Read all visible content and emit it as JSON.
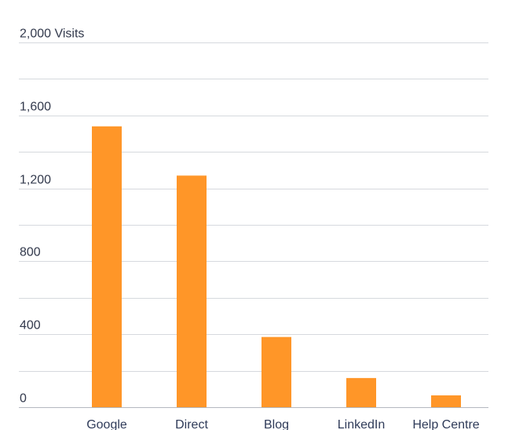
{
  "chart_data": {
    "type": "bar",
    "categories": [
      "Google",
      "Direct",
      "Blog",
      "LinkedIn",
      "Help Centre"
    ],
    "values": [
      1540,
      1270,
      385,
      160,
      65
    ],
    "ylim": [
      0,
      2000
    ],
    "y_ticks": [
      {
        "value": 0,
        "label": "0"
      },
      {
        "value": 400,
        "label": "400"
      },
      {
        "value": 800,
        "label": "800"
      },
      {
        "value": 1200,
        "label": "1,200"
      },
      {
        "value": 1600,
        "label": "1,600"
      },
      {
        "value": 2000,
        "label": "2,000 Visits"
      }
    ],
    "minor_gridlines": [
      200,
      600,
      1000,
      1400,
      1800
    ],
    "grid": true,
    "legend": "none",
    "colors": {
      "bar": "#ff9628",
      "grid": "#d6d9de",
      "baseline": "#b4b8c0",
      "tick_text": "#333a4d",
      "category_text": "#2f3b59"
    }
  }
}
